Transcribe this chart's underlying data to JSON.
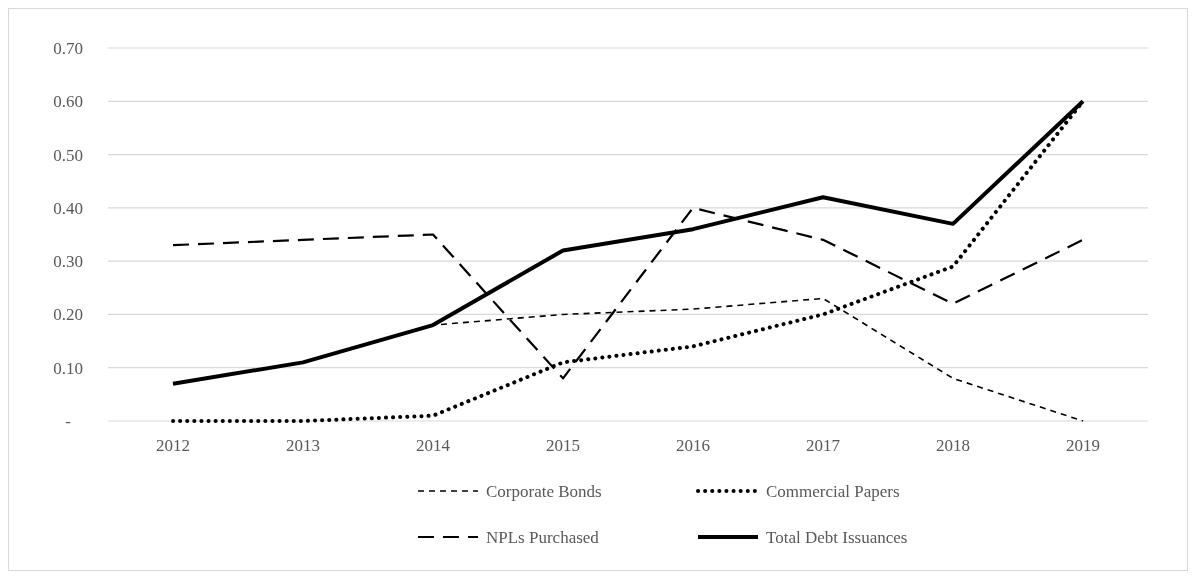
{
  "chart_data": {
    "type": "line",
    "categories": [
      "2012",
      "2013",
      "2014",
      "2015",
      "2016",
      "2017",
      "2018",
      "2019"
    ],
    "series": [
      {
        "name": "Corporate Bonds",
        "color": "#000000",
        "line_style": "dashed",
        "values": [
          0.07,
          0.11,
          0.18,
          0.2,
          0.21,
          0.23,
          0.08,
          0
        ]
      },
      {
        "name": "Commercial Papers",
        "color": "#000000",
        "line_style": "dotted",
        "values": [
          0,
          0,
          0.01,
          0.11,
          0.14,
          0.2,
          0.29,
          0.6
        ]
      },
      {
        "name": "NPLs Purchased",
        "color": "#000000",
        "line_style": "dashed",
        "values": [
          0.33,
          0.34,
          0.35,
          0.08,
          0.4,
          0.34,
          0.22,
          0.34
        ]
      },
      {
        "name": "Total Debt Issuances",
        "color": "#000000",
        "line_style": "solid",
        "values": [
          0.07,
          0.11,
          0.18,
          0.32,
          0.36,
          0.42,
          0.37,
          0.6
        ]
      }
    ],
    "ylim": [
      0,
      0.7
    ],
    "yticks": [
      {
        "value": 0,
        "label": "-"
      },
      {
        "value": 0.1,
        "label": "0.10"
      },
      {
        "value": 0.2,
        "label": "0.20"
      },
      {
        "value": 0.3,
        "label": "0.30"
      },
      {
        "value": 0.4,
        "label": "0.40"
      },
      {
        "value": 0.5,
        "label": "0.50"
      },
      {
        "value": 0.6,
        "label": "0.60"
      },
      {
        "value": 0.7,
        "label": "0.70"
      }
    ],
    "grid": "y",
    "legend": "bottom",
    "marker": "none"
  }
}
